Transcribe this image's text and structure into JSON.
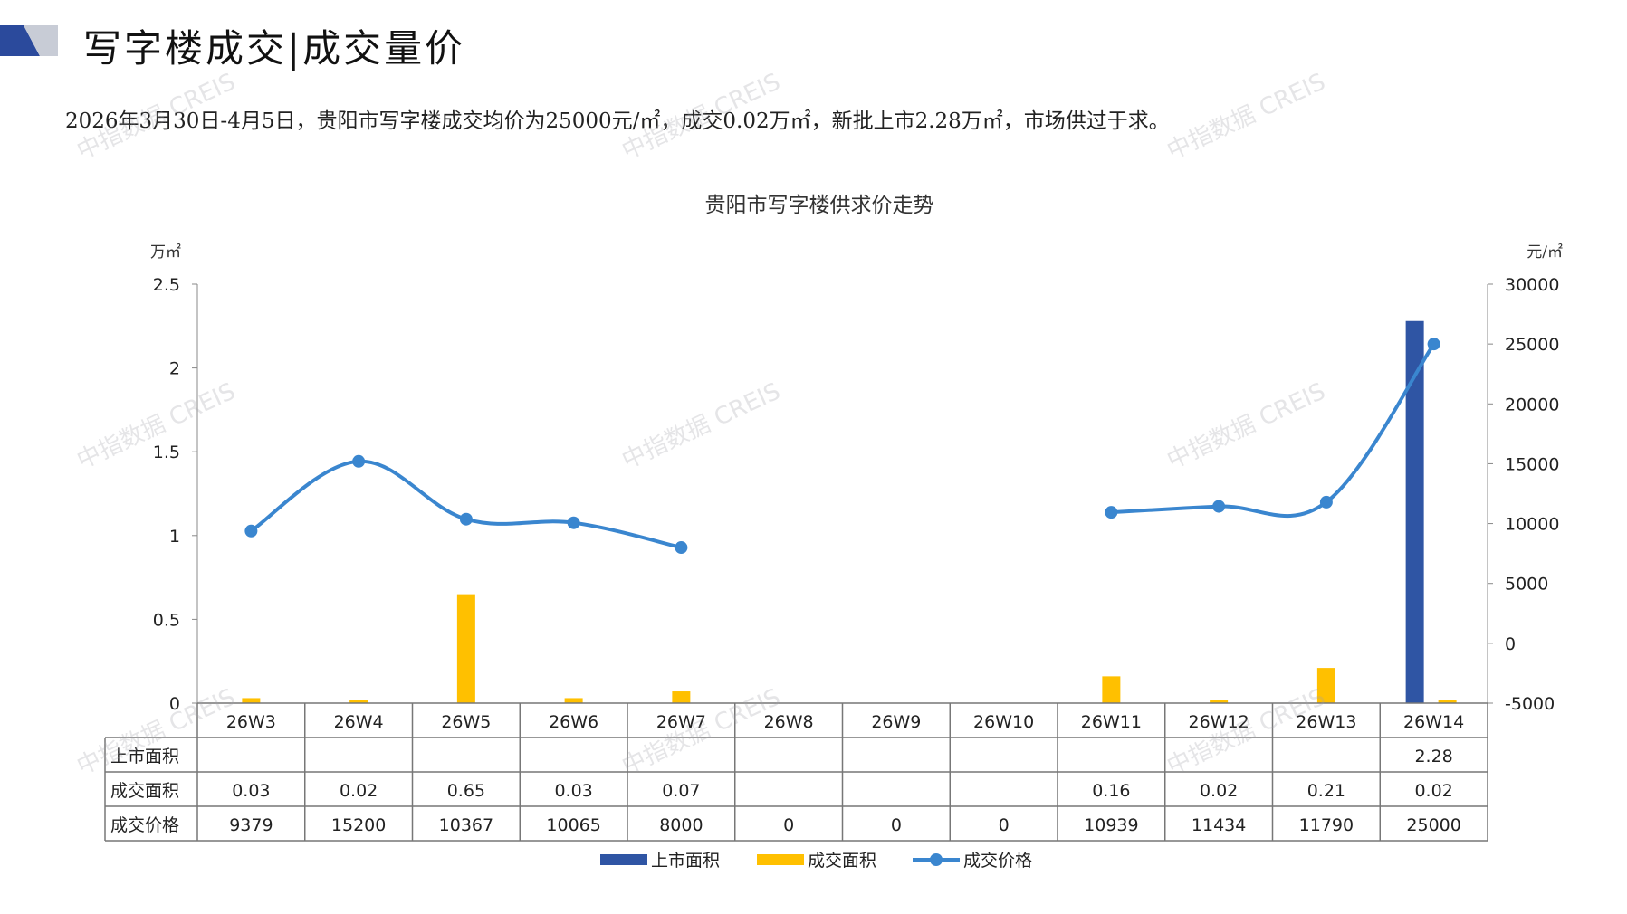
{
  "header": {
    "title": "写字楼成交|成交量价",
    "summary": "2026年3月30日-4月5日，贵阳市写字楼成交均价为25000元/㎡，成交0.02万㎡，新批上市2.28万㎡，市场供过于求。"
  },
  "watermark": {
    "text": "中指数据 CREIS"
  },
  "colors": {
    "supply": "#2f55a4",
    "deal_area": "#ffc000",
    "price_line": "#3a86cf",
    "header_dark": "#2b4a9c",
    "header_light": "#c8ccd6"
  },
  "chart_data": {
    "type": "bar",
    "title": "贵阳市写字楼供求价走势",
    "ylabel_left": "万㎡",
    "ylabel_right": "元/㎡",
    "ylim_left": [
      0,
      2.5
    ],
    "ylim_right": [
      -5000,
      30000
    ],
    "yticks_left": [
      "0",
      "0.5",
      "1",
      "1.5",
      "2",
      "2.5"
    ],
    "yticks_right": [
      "-5000",
      "0",
      "5000",
      "10000",
      "15000",
      "20000",
      "25000",
      "30000"
    ],
    "legend_placement": "bottom",
    "categories": [
      "26W3",
      "26W4",
      "26W5",
      "26W6",
      "26W7",
      "26W8",
      "26W9",
      "26W10",
      "26W11",
      "26W12",
      "26W13",
      "26W14"
    ],
    "series": [
      {
        "name": "上市面积",
        "type": "bar",
        "axis": "left",
        "values": [
          null,
          null,
          null,
          null,
          null,
          null,
          null,
          null,
          null,
          null,
          null,
          2.28
        ],
        "labels": [
          "",
          "",
          "",
          "",
          "",
          "",
          "",
          "",
          "",
          "",
          "",
          "2.28"
        ]
      },
      {
        "name": "成交面积",
        "type": "bar",
        "axis": "left",
        "values": [
          0.03,
          0.02,
          0.65,
          0.03,
          0.07,
          null,
          null,
          null,
          0.16,
          0.02,
          0.21,
          0.02
        ],
        "labels": [
          "0.03",
          "0.02",
          "0.65",
          "0.03",
          "0.07",
          "",
          "",
          "",
          "0.16",
          "0.02",
          "0.21",
          "0.02"
        ]
      },
      {
        "name": "成交价格",
        "type": "line",
        "axis": "right",
        "values": [
          9379,
          15200,
          10367,
          10065,
          8000,
          0,
          0,
          0,
          10939,
          11434,
          11790,
          25000
        ],
        "labels": [
          "9379",
          "15200",
          "10367",
          "10065",
          "8000",
          "0",
          "0",
          "0",
          "10939",
          "11434",
          "11790",
          "25000"
        ]
      }
    ]
  }
}
